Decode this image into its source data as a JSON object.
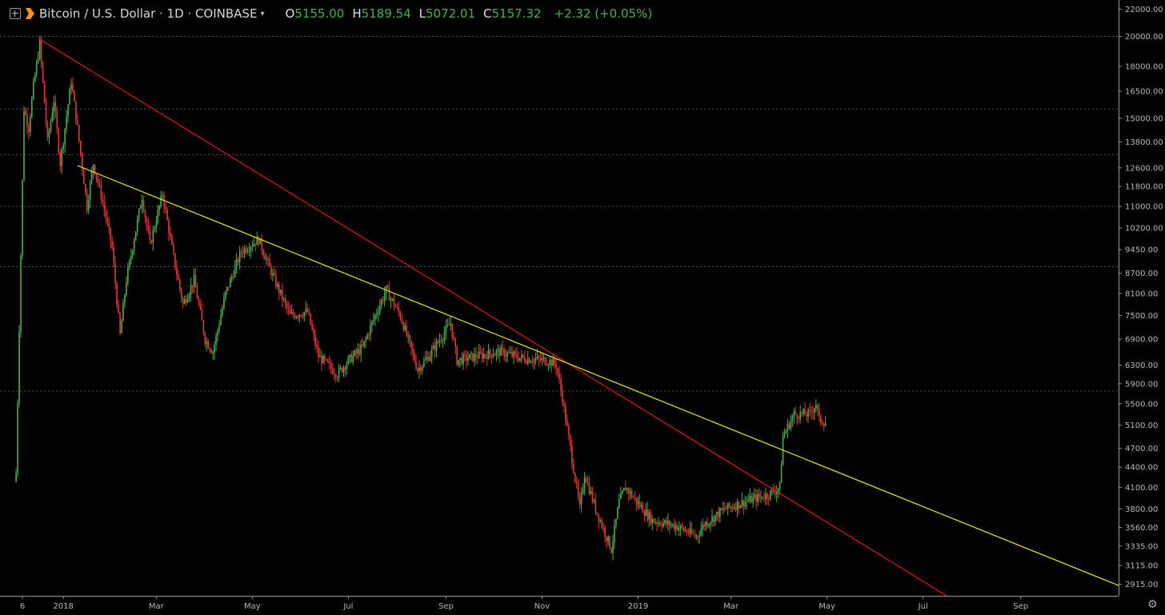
{
  "header": {
    "symbol": "Bitcoin / U.S. Dollar · 1D · COINBASE",
    "open_label": "O",
    "open": "5155.00",
    "high_label": "H",
    "high": "5189.54",
    "low_label": "L",
    "low": "5072.01",
    "close_label": "C",
    "close": "5157.32",
    "change": "+2.32 (+0.05%)"
  },
  "colors": {
    "background": "#000000",
    "up": "#4caf50",
    "down": "#e53935",
    "red_trendline": "#e01818",
    "yellow_trendline": "#e8e800",
    "gridline": "#555555"
  },
  "icons": [
    "plus-square-icon",
    "bitcoin-logo-icon",
    "chevron-down-icon",
    "gear-icon"
  ],
  "chart_data": {
    "type": "candlestick",
    "x_axis_labels": [
      "6",
      "2018",
      "Mar",
      "May",
      "Jul",
      "Sep",
      "Nov",
      "2019",
      "Mar",
      "May",
      "Jul",
      "Sep"
    ],
    "y_axis_labels": [
      "22000.00",
      "20000.00",
      "18000.00",
      "16500.00",
      "15000.00",
      "13800.00",
      "12600.00",
      "11800.00",
      "11000.00",
      "10200.00",
      "9450.00",
      "8700.00",
      "8100.00",
      "7500.00",
      "6900.00",
      "6300.00",
      "5900.00",
      "5500.00",
      "5100.00",
      "4700.00",
      "4400.00",
      "4100.00",
      "3800.00",
      "3560.00",
      "3335.00",
      "3115.00",
      "2915.00"
    ],
    "y_scale": "log",
    "ylim": [
      2800,
      22600
    ],
    "price_path": [
      [
        "2017-12-06",
        12000
      ],
      [
        "2017-12-07",
        15500
      ],
      [
        "2017-12-10",
        14500
      ],
      [
        "2017-12-13",
        16800
      ],
      [
        "2017-12-17",
        19500
      ],
      [
        "2017-12-22",
        13800
      ],
      [
        "2017-12-26",
        16000
      ],
      [
        "2017-12-30",
        12800
      ],
      [
        "2018-01-06",
        17100
      ],
      [
        "2018-01-10",
        14500
      ],
      [
        "2018-01-16",
        11000
      ],
      [
        "2018-01-20",
        12800
      ],
      [
        "2018-01-26",
        11200
      ],
      [
        "2018-02-01",
        9500
      ],
      [
        "2018-02-06",
        7000
      ],
      [
        "2018-02-10",
        8500
      ],
      [
        "2018-02-20",
        11400
      ],
      [
        "2018-02-25",
        9600
      ],
      [
        "2018-03-05",
        11500
      ],
      [
        "2018-03-12",
        9200
      ],
      [
        "2018-03-18",
        7800
      ],
      [
        "2018-03-25",
        8500
      ],
      [
        "2018-04-01",
        6900
      ],
      [
        "2018-04-06",
        6600
      ],
      [
        "2018-04-14",
        8100
      ],
      [
        "2018-04-24",
        9400
      ],
      [
        "2018-05-05",
        9800
      ],
      [
        "2018-05-15",
        8500
      ],
      [
        "2018-05-25",
        7500
      ],
      [
        "2018-06-05",
        7600
      ],
      [
        "2018-06-12",
        6500
      ],
      [
        "2018-06-24",
        6100
      ],
      [
        "2018-07-01",
        6400
      ],
      [
        "2018-07-10",
        6700
      ],
      [
        "2018-07-17",
        7400
      ],
      [
        "2018-07-25",
        8200
      ],
      [
        "2018-08-03",
        7500
      ],
      [
        "2018-08-14",
        6200
      ],
      [
        "2018-08-21",
        6500
      ],
      [
        "2018-09-04",
        7300
      ],
      [
        "2018-09-08",
        6400
      ],
      [
        "2018-09-20",
        6500
      ],
      [
        "2018-10-05",
        6600
      ],
      [
        "2018-10-20",
        6450
      ],
      [
        "2018-11-05",
        6400
      ],
      [
        "2018-11-10",
        6300
      ],
      [
        "2018-11-14",
        5600
      ],
      [
        "2018-11-19",
        4700
      ],
      [
        "2018-11-25",
        3800
      ],
      [
        "2018-11-28",
        4300
      ],
      [
        "2018-12-05",
        3800
      ],
      [
        "2018-12-15",
        3300
      ],
      [
        "2018-12-20",
        3900
      ],
      [
        "2018-12-24",
        4100
      ],
      [
        "2019-01-02",
        3850
      ],
      [
        "2019-01-10",
        3650
      ],
      [
        "2019-01-25",
        3580
      ],
      [
        "2019-02-07",
        3450
      ],
      [
        "2019-02-12",
        3600
      ],
      [
        "2019-02-25",
        3800
      ],
      [
        "2019-03-10",
        3900
      ],
      [
        "2019-03-25",
        4000
      ],
      [
        "2019-04-01",
        4100
      ],
      [
        "2019-04-03",
        4900
      ],
      [
        "2019-04-10",
        5300
      ],
      [
        "2019-04-20",
        5300
      ],
      [
        "2019-04-24",
        5500
      ],
      [
        "2019-04-26",
        5200
      ],
      [
        "2019-04-30",
        5157
      ]
    ],
    "trendlines": [
      {
        "color": "red",
        "points": [
          [
            "2017-12-17",
            19800
          ],
          [
            "2018-11-10",
            6500
          ]
        ]
      },
      {
        "color": "yellow",
        "points": [
          [
            "2018-01-10",
            12700
          ],
          [
            "2018-07-25",
            8200
          ]
        ]
      }
    ],
    "horizontal_levels": [
      20000,
      15500,
      13200,
      11000,
      8900,
      5750
    ],
    "grid": false
  }
}
